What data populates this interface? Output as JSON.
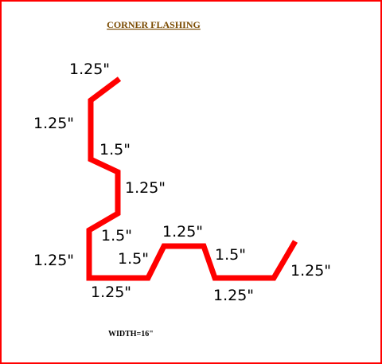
{
  "diagram": {
    "title": "CORNER  FLASHING",
    "width_note": "WIDTH=16\"",
    "colors": {
      "border": "#ff0000",
      "profile": "#ff0000",
      "title": "#7a4a00",
      "labels": "#000000"
    },
    "dimensions": [
      {
        "id": "top-flange",
        "label": "1.25\""
      },
      {
        "id": "left-upper-vertical",
        "label": "1.25\""
      },
      {
        "id": "upper-jog-diagonal",
        "label": "1.5\""
      },
      {
        "id": "middle-vertical",
        "label": "1.25\""
      },
      {
        "id": "lower-jog-diagonal",
        "label": "1.5\""
      },
      {
        "id": "left-lower-vertical",
        "label": "1.25\""
      },
      {
        "id": "bottom-left-run",
        "label": "1.25\""
      },
      {
        "id": "rib-left-slope",
        "label": "1.5\""
      },
      {
        "id": "rib-top",
        "label": "1.25\""
      },
      {
        "id": "rib-right-slope",
        "label": "1.5\""
      },
      {
        "id": "bottom-right-run",
        "label": "1.25\""
      },
      {
        "id": "end-flange",
        "label": "1.25\""
      }
    ]
  }
}
